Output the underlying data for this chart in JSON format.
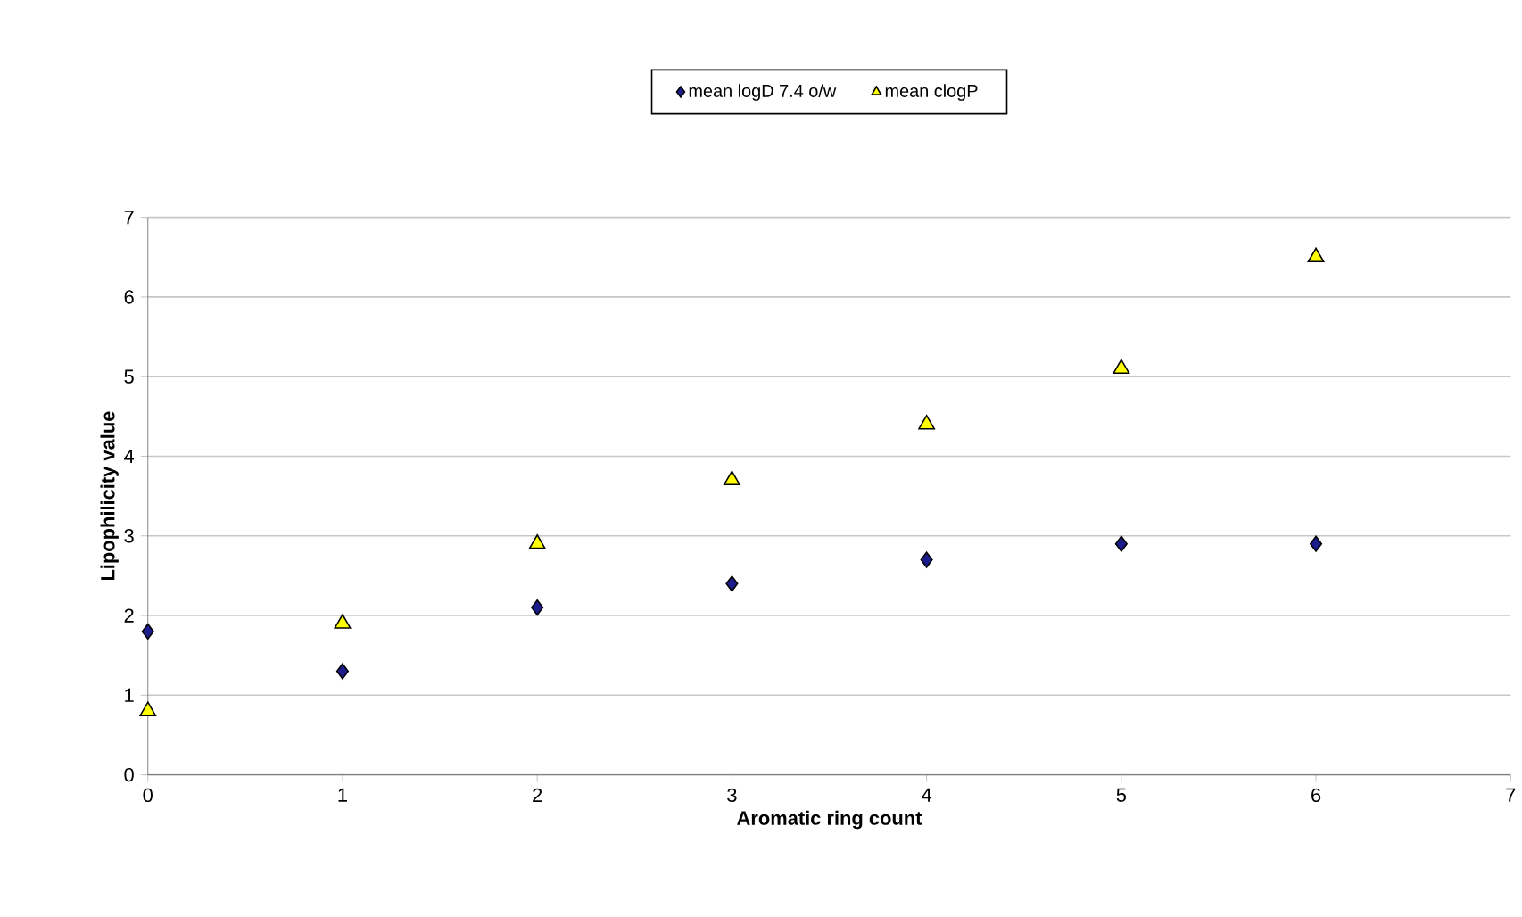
{
  "chart_data": {
    "type": "scatter",
    "xlabel": "Aromatic ring count",
    "ylabel": "Lipophilicity value",
    "x": [
      0,
      1,
      2,
      3,
      4,
      5,
      6
    ],
    "series": [
      {
        "name": "mean logD 7.4 o/w",
        "color": "#1c1c8c",
        "marker": "diamond",
        "values": [
          1.8,
          1.3,
          2.1,
          2.4,
          2.7,
          2.9,
          2.9
        ]
      },
      {
        "name": "mean clogP",
        "color": "#ffff00",
        "marker": "triangle",
        "values": [
          0.8,
          1.9,
          2.9,
          3.7,
          4.4,
          5.1,
          6.5
        ]
      }
    ],
    "xlim": [
      0,
      7
    ],
    "xticks": [
      0,
      1,
      2,
      3,
      4,
      5,
      6,
      7
    ],
    "ylim": [
      0,
      7
    ],
    "yticks": [
      0,
      1,
      2,
      3,
      4,
      5,
      6,
      7
    ],
    "grid": "y",
    "legend": "top"
  }
}
